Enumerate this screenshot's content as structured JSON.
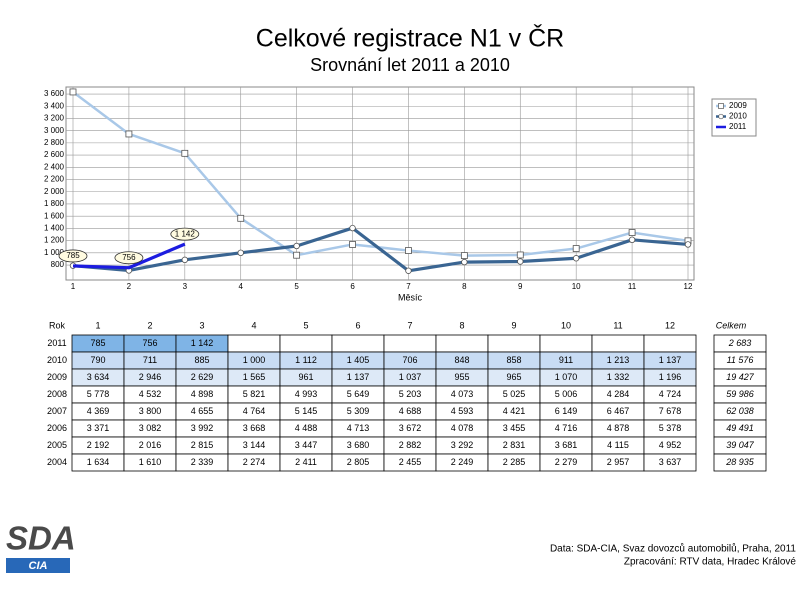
{
  "chart_data": {
    "type": "line",
    "title": "Celkové registrace N1 v ČR",
    "subtitle": "Srovnání let 2011 a 2010",
    "x_label": "Měsíc",
    "x": [
      1,
      2,
      3,
      4,
      5,
      6,
      7,
      8,
      9,
      10,
      11,
      12
    ],
    "xlim": [
      1,
      12
    ],
    "xticks": [
      1,
      2,
      3,
      4,
      5,
      6,
      7,
      8,
      9,
      10,
      11,
      12
    ],
    "ylim": [
      555,
      3715
    ],
    "yticks": [
      800,
      {
        "value": 1000,
        "label": "1 000"
      },
      {
        "value": 1200,
        "label": "1 200"
      },
      {
        "value": 1400,
        "label": "1 400"
      },
      {
        "value": 1600,
        "label": "1 600"
      },
      {
        "value": 1800,
        "label": "1 800"
      },
      {
        "value": 2000,
        "label": "2 000"
      },
      {
        "value": 2200,
        "label": "2 200"
      },
      {
        "value": 2400,
        "label": "2 400"
      },
      {
        "value": 2600,
        "label": "2 600"
      },
      {
        "value": 2800,
        "label": "2 800"
      },
      {
        "value": 3000,
        "label": "3 000"
      },
      {
        "value": 3200,
        "label": "3 200"
      },
      {
        "value": 3400,
        "label": "3 400"
      },
      {
        "value": 3600,
        "label": "3 600"
      }
    ],
    "grid": true,
    "legend": "upper right",
    "series": [
      {
        "name": "2009",
        "color": "#a9c8e8",
        "marker": "square",
        "values": [
          3634,
          2946,
          2629,
          1565,
          961,
          1137,
          1037,
          955,
          965,
          1070,
          1332,
          1196
        ]
      },
      {
        "name": "2010",
        "color": "#3a6592",
        "marker": "circle",
        "values": [
          790,
          711,
          885,
          1000,
          1112,
          1405,
          706,
          848,
          858,
          911,
          1213,
          1137
        ]
      },
      {
        "name": "2011",
        "color": "#1c1ce0",
        "values": [
          785,
          756,
          1142,
          null,
          null,
          null,
          null,
          null,
          null,
          null,
          null,
          null
        ],
        "value_labels": [
          "785",
          "756",
          "1 142"
        ]
      }
    ]
  },
  "table": {
    "header": [
      "Rok",
      "1",
      "2",
      "3",
      "4",
      "5",
      "6",
      "7",
      "8",
      "9",
      "10",
      "11",
      "12",
      "Celkem"
    ],
    "rows": [
      {
        "year": "2011",
        "cells": [
          "785",
          "756",
          "1 142"
        ],
        "total": "2 683"
      },
      {
        "year": "2010",
        "cells": [
          "790",
          "711",
          "885",
          "1 000",
          "1 112",
          "1 405",
          "706",
          "848",
          "858",
          "911",
          "1 213",
          "1 137"
        ],
        "total": "11 576"
      },
      {
        "year": "2009",
        "cells": [
          "3 634",
          "2 946",
          "2 629",
          "1 565",
          "961",
          "1 137",
          "1 037",
          "955",
          "965",
          "1 070",
          "1 332",
          "1 196"
        ],
        "total": "19 427"
      },
      {
        "year": "2008",
        "cells": [
          "5 778",
          "4 532",
          "4 898",
          "5 821",
          "4 993",
          "5 649",
          "5 203",
          "4 073",
          "5 025",
          "5 006",
          "4 284",
          "4 724"
        ],
        "total": "59 986"
      },
      {
        "year": "2007",
        "cells": [
          "4 369",
          "3 800",
          "4 655",
          "4 764",
          "5 145",
          "5 309",
          "4 688",
          "4 593",
          "4 421",
          "6 149",
          "6 467",
          "7 678"
        ],
        "total": "62 038"
      },
      {
        "year": "2006",
        "cells": [
          "3 371",
          "3 082",
          "3 992",
          "3 668",
          "4 488",
          "4 713",
          "3 672",
          "4 078",
          "3 455",
          "4 716",
          "4 878",
          "5 378"
        ],
        "total": "49 491"
      },
      {
        "year": "2005",
        "cells": [
          "2 192",
          "2 016",
          "2 815",
          "3 144",
          "3 447",
          "3 680",
          "2 882",
          "3 292",
          "2 831",
          "3 681",
          "4 115",
          "4 952"
        ],
        "total": "39 047"
      },
      {
        "year": "2004",
        "cells": [
          "1 634",
          "1 610",
          "2 339",
          "2 274",
          "2 411",
          "2 805",
          "2 455",
          "2 249",
          "2 285",
          "2 279",
          "2 957",
          "3 637"
        ],
        "total": "28 935"
      }
    ]
  },
  "footer": {
    "source": "Data: SDA-CIA, Svaz dovozců automobilů, Praha, 2011",
    "processing": "Zpracování: RTV data, Hradec Králové"
  },
  "logo": {
    "name": "SDA",
    "sub": "CIA"
  }
}
